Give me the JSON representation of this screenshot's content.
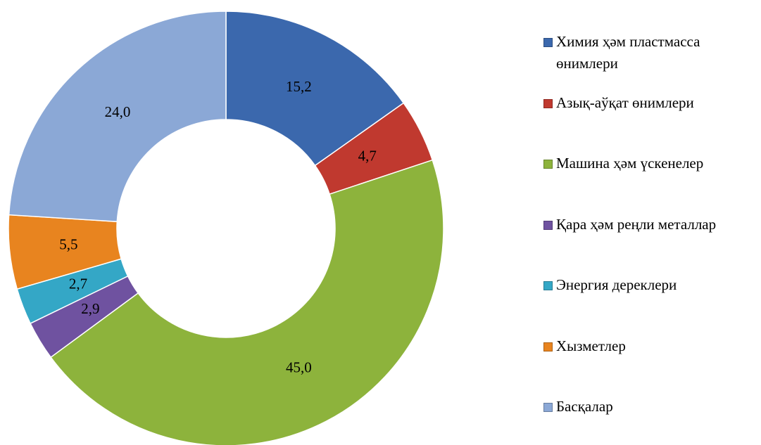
{
  "chart_data": {
    "type": "donut",
    "categories": [
      "Химия ҳәм пластмасса өнимлери",
      "Азық-аўқат өнимлери",
      "Машина ҳәм үскенелер",
      "Қара ҳәм реңли металлар",
      "Энергия дереклери",
      "Хызметлер",
      "Басқалар"
    ],
    "values": [
      15.2,
      4.7,
      45.0,
      2.9,
      2.7,
      5.5,
      24.0
    ],
    "value_labels": [
      "15,2",
      "4,7",
      "45,0",
      "2,9",
      "2,7",
      "5,5",
      "24,0"
    ],
    "colors": [
      "#3b68ad",
      "#c0392f",
      "#8db33c",
      "#6f52a0",
      "#34a7c6",
      "#e8841f",
      "#8ba8d6"
    ],
    "legend": "right"
  }
}
